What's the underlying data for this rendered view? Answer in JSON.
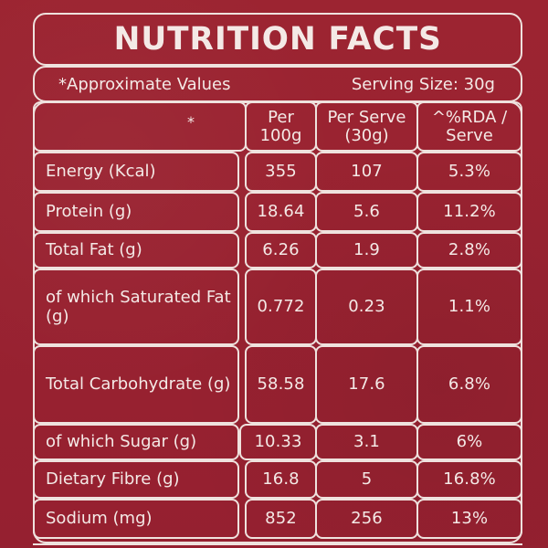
{
  "title": "NUTRITION FACTS",
  "approx_label": "*Approximate Values",
  "serving_size": "Serving Size: 30g",
  "star_mark": "*",
  "headers": {
    "per_100g": "Per 100g",
    "per_serve": "Per Serve (30g)",
    "rda": "^%RDA / Serve"
  },
  "rows": [
    {
      "label": "Energy (Kcal)",
      "per100g": "355",
      "perServe": "107",
      "rda": "5.3%"
    },
    {
      "label": "Protein (g)",
      "per100g": "18.64",
      "perServe": "5.6",
      "rda": "11.2%"
    },
    {
      "label": "Total Fat (g)",
      "per100g": "6.26",
      "perServe": "1.9",
      "rda": "2.8%"
    },
    {
      "label": "of which Saturated Fat (g)",
      "per100g": "0.772",
      "perServe": "0.23",
      "rda": "1.1%"
    },
    {
      "label": "Total Carbohydrate (g)",
      "per100g": "58.58",
      "perServe": "17.6",
      "rda": "6.8%"
    },
    {
      "label": "of which Sugar (g)",
      "per100g": "10.33",
      "perServe": "3.1",
      "rda": "6%"
    },
    {
      "label": "Dietary Fibre (g)",
      "per100g": "16.8",
      "perServe": "5",
      "rda": "16.8%"
    },
    {
      "label": "Sodium (mg)",
      "per100g": "852",
      "perServe": "256",
      "rda": "13%"
    }
  ]
}
